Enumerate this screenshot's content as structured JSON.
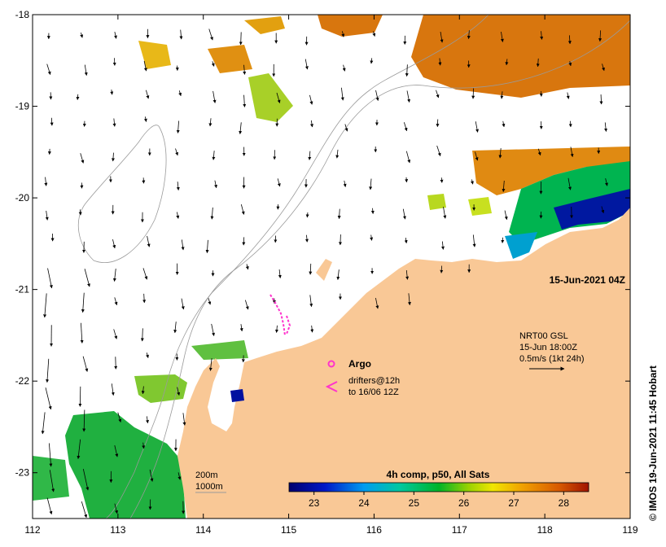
{
  "map": {
    "lon_range": [
      112,
      119
    ],
    "lat_range": [
      -23.5,
      -18
    ],
    "lon_ticks": [
      "112",
      "113",
      "114",
      "115",
      "116",
      "117",
      "118",
      "119"
    ],
    "lat_ticks": [
      "-18",
      "-19",
      "-20",
      "-21",
      "-22",
      "-23"
    ],
    "timestamp": "15-Jun-2021 04Z",
    "current_info": {
      "line1": "NRT00 GSL",
      "line2": "15-Jun 18:00Z",
      "line3": "0.5m/s (1kt 24h)"
    },
    "legend": {
      "argo_label": "Argo",
      "drifters_line1": "drifters@12h",
      "drifters_line2": "to 16/06 12Z"
    },
    "contours": {
      "label_200": "200m",
      "label_1000": "1000m"
    },
    "colorbar": {
      "title": "4h comp, p50, All Sats",
      "ticks": [
        "23",
        "24",
        "25",
        "26",
        "27",
        "28"
      ],
      "range": [
        22.5,
        28.5
      ]
    },
    "credit": "© IMOS 19-Jun-2021 11:45 Hobart",
    "colors": {
      "land": "#f9c896",
      "warm_sst": "#d8760e",
      "cool_sst": "#00a040",
      "argo": "#ff33cc",
      "drifter": "#ff33cc"
    }
  }
}
